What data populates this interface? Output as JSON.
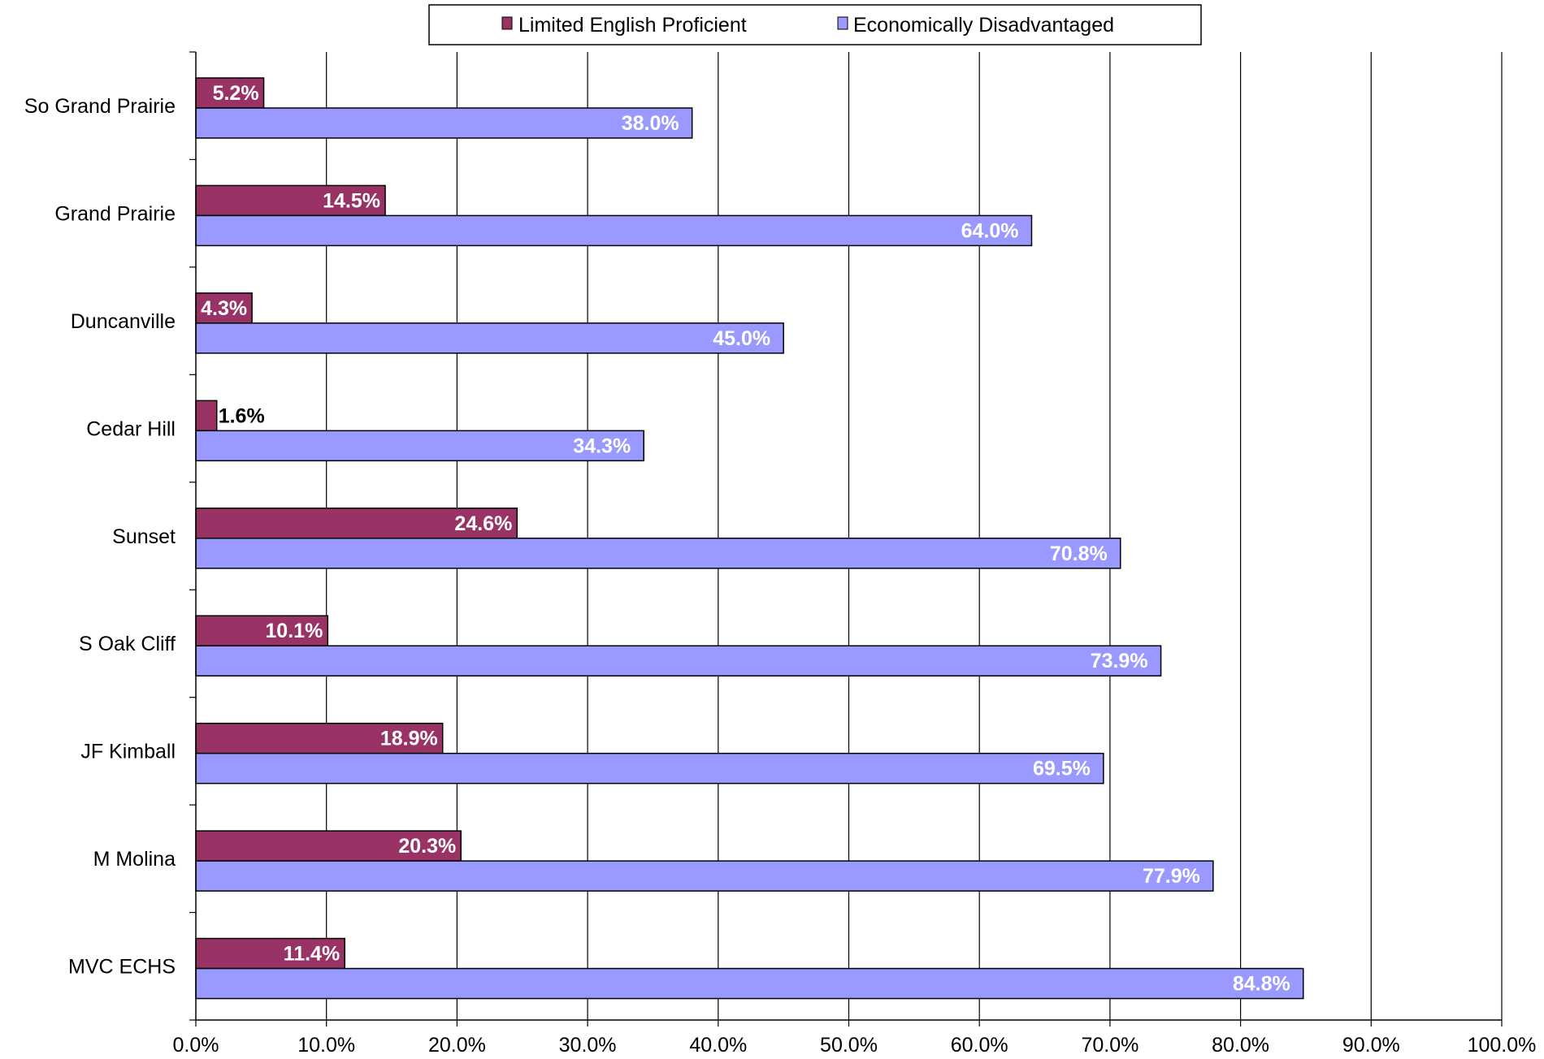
{
  "chart_data": {
    "type": "bar",
    "orientation": "horizontal",
    "categories": [
      "So Grand Prairie",
      "Grand Prairie",
      "Duncanville",
      "Cedar Hill",
      "Sunset",
      "S Oak Cliff",
      "JF Kimball",
      "M Molina",
      "MVC ECHS"
    ],
    "series": [
      {
        "name": "Limited English Proficient",
        "color": "#993366",
        "values": [
          5.2,
          14.5,
          4.3,
          1.6,
          24.6,
          10.1,
          18.9,
          20.3,
          11.4
        ],
        "labels": [
          "5.2%",
          "14.5%",
          "4.3%",
          "1.6%",
          "24.6%",
          "10.1%",
          "18.9%",
          "20.3%",
          "11.4%"
        ]
      },
      {
        "name": "Economically Disadvantaged",
        "color": "#9999FF",
        "values": [
          38.0,
          64.0,
          45.0,
          34.3,
          70.8,
          73.9,
          69.5,
          77.9,
          84.8
        ],
        "labels": [
          "38.0%",
          "64.0%",
          "45.0%",
          "34.3%",
          "70.8%",
          "73.9%",
          "69.5%",
          "77.9%",
          "84.8%"
        ]
      }
    ],
    "xlim": [
      0,
      100
    ],
    "xticks": [
      "0.0%",
      "10.0%",
      "20.0%",
      "30.0%",
      "40.0%",
      "50.0%",
      "60.0%",
      "70.0%",
      "80.0%",
      "90.0%",
      "100.0%"
    ],
    "grid": "vertical",
    "legend": "top-center"
  }
}
